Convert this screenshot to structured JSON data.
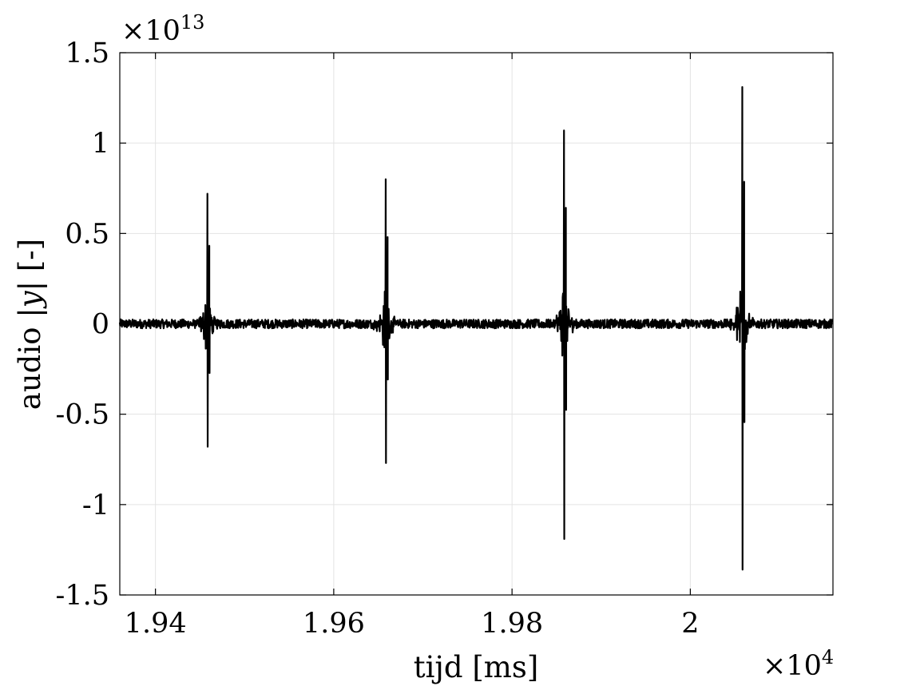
{
  "chart_data": {
    "type": "line",
    "xlabel": "tijd [ms]",
    "ylabel_text": "audio ",
    "ylabel_var": "|y|",
    "ylabel_unit": " [-]",
    "x_scale_exponent": "×10",
    "x_scale_power": "4",
    "y_scale_exponent": "×10",
    "y_scale_power": "13",
    "xlim": [
      19360,
      20160
    ],
    "ylim": [
      -15000000000000.0,
      15000000000000.0
    ],
    "grid": true,
    "x_ticks": [
      {
        "value": 19400,
        "label": "1.94"
      },
      {
        "value": 19600,
        "label": "1.96"
      },
      {
        "value": 19800,
        "label": "1.98"
      },
      {
        "value": 20000,
        "label": "2"
      }
    ],
    "y_ticks": [
      {
        "value": 15000000000000.0,
        "label": "1.5"
      },
      {
        "value": 10000000000000.0,
        "label": "1"
      },
      {
        "value": 5000000000000.0,
        "label": "0.5"
      },
      {
        "value": 0,
        "label": "0"
      },
      {
        "value": -5000000000000.0,
        "label": "-0.5"
      },
      {
        "value": -10000000000000.0,
        "label": "-1"
      },
      {
        "value": -15000000000000.0,
        "label": "-1.5"
      }
    ],
    "series": [
      {
        "color": "#000000",
        "pulses": [
          {
            "t": 19458,
            "max": 7200000000000.0,
            "min": -6800000000000.0
          },
          {
            "t": 19658,
            "max": 8000000000000.0,
            "min": -7700000000000.0
          },
          {
            "t": 19858,
            "max": 10700000000000.0,
            "min": -11900000000000.0
          },
          {
            "t": 20058,
            "max": 13100000000000.0,
            "min": -13600000000000.0
          }
        ]
      }
    ]
  }
}
